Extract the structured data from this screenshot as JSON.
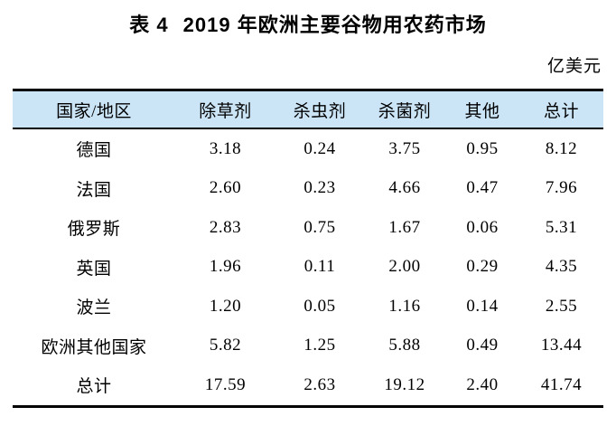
{
  "caption": {
    "label": "表 4",
    "text": "2019 年欧洲主要谷物用农药市场"
  },
  "unit": "亿美元",
  "table": {
    "columns": [
      "国家/地区",
      "除草剂",
      "杀虫剂",
      "杀菌剂",
      "其他",
      "总计"
    ],
    "rows": [
      [
        "德国",
        "3.18",
        "0.24",
        "3.75",
        "0.95",
        "8.12"
      ],
      [
        "法国",
        "2.60",
        "0.23",
        "4.66",
        "0.47",
        "7.96"
      ],
      [
        "俄罗斯",
        "2.83",
        "0.75",
        "1.67",
        "0.06",
        "5.31"
      ],
      [
        "英国",
        "1.96",
        "0.11",
        "2.00",
        "0.29",
        "4.35"
      ],
      [
        "波兰",
        "1.20",
        "0.05",
        "1.16",
        "0.14",
        "2.55"
      ],
      [
        "欧洲其他国家",
        "5.82",
        "1.25",
        "5.88",
        "0.49",
        "13.44"
      ],
      [
        "总计",
        "17.59",
        "2.63",
        "19.12",
        "2.40",
        "41.74"
      ]
    ],
    "header_bg": "#cbe5f7"
  }
}
